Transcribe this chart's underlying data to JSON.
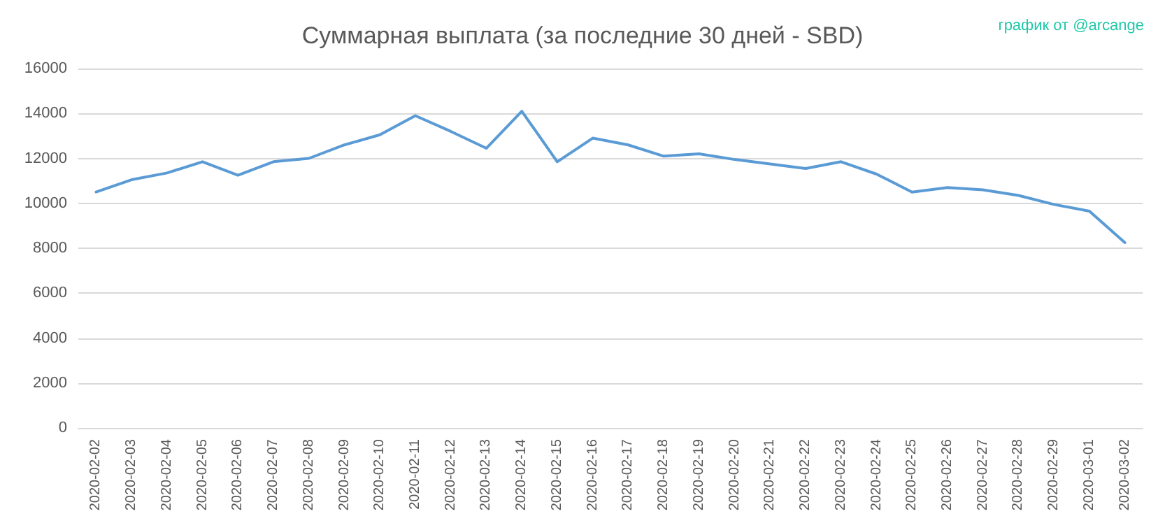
{
  "chart_data": {
    "type": "line",
    "title": "Суммарная выплата (за последние 30 дней - SBD)",
    "annotations": [
      "график от @arcange"
    ],
    "categories": [
      "2020-02-02",
      "2020-02-03",
      "2020-02-04",
      "2020-02-05",
      "2020-02-06",
      "2020-02-07",
      "2020-02-08",
      "2020-02-09",
      "2020-02-10",
      "2020-02-11",
      "2020-02-12",
      "2020-02-13",
      "2020-02-14",
      "2020-02-15",
      "2020-02-16",
      "2020-02-17",
      "2020-02-18",
      "2020-02-19",
      "2020-02-20",
      "2020-02-21",
      "2020-02-22",
      "2020-02-23",
      "2020-02-24",
      "2020-02-25",
      "2020-02-26",
      "2020-02-27",
      "2020-02-28",
      "2020-02-29",
      "2020-03-01",
      "2020-03-02"
    ],
    "series": [
      {
        "color": "#5b9bd5",
        "values": [
          10500,
          11050,
          11350,
          11850,
          11250,
          11850,
          12000,
          12600,
          13050,
          13900,
          13200,
          12450,
          14100,
          11850,
          12900,
          12600,
          12100,
          12200,
          11950,
          11750,
          11550,
          11850,
          11300,
          10500,
          10700,
          10600,
          10350,
          9950,
          9650,
          8250
        ]
      }
    ],
    "ylim": [
      0,
      16000
    ],
    "yticks": [
      0,
      2000,
      4000,
      6000,
      8000,
      10000,
      12000,
      14000,
      16000
    ],
    "grid": "y",
    "marker": "none",
    "line_style": "solid"
  }
}
